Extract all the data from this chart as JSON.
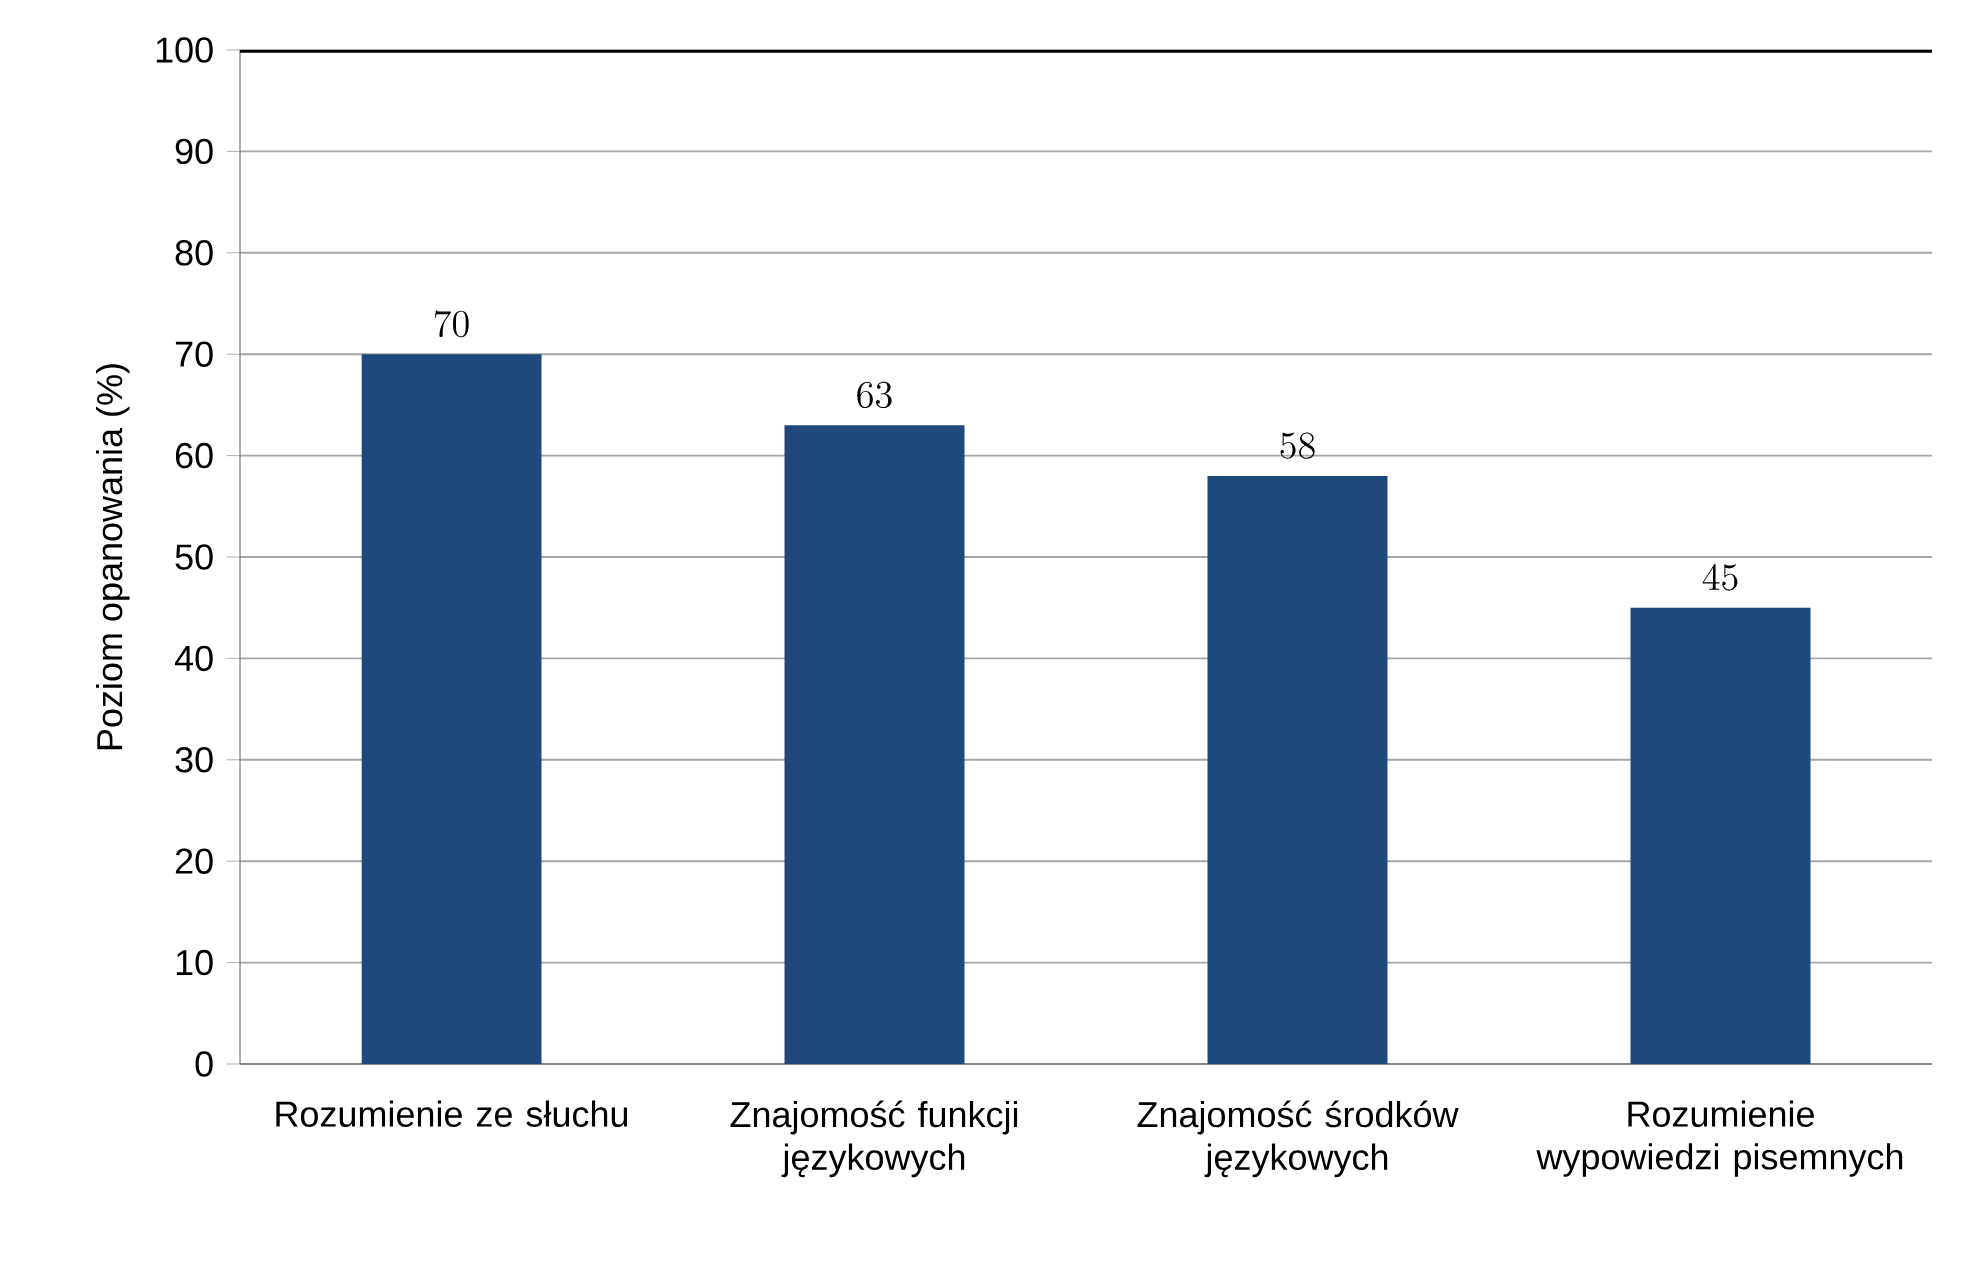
{
  "chart_data": {
    "type": "bar",
    "ylabel": "Poziom opanowania (%)",
    "categories": [
      "Rozumienie ze słuchu",
      "Znajomość funkcji językowych",
      "Znajomość środków językowych",
      "Rozumienie wypowiedzi pisemnych"
    ],
    "values": [
      70,
      63,
      58,
      45
    ],
    "color": "#1f497d",
    "ylim": [
      0,
      100
    ],
    "yticks": [
      0,
      10,
      20,
      30,
      40,
      50,
      60,
      70,
      80,
      90,
      100
    ],
    "grid": "y",
    "data_labels": true
  }
}
